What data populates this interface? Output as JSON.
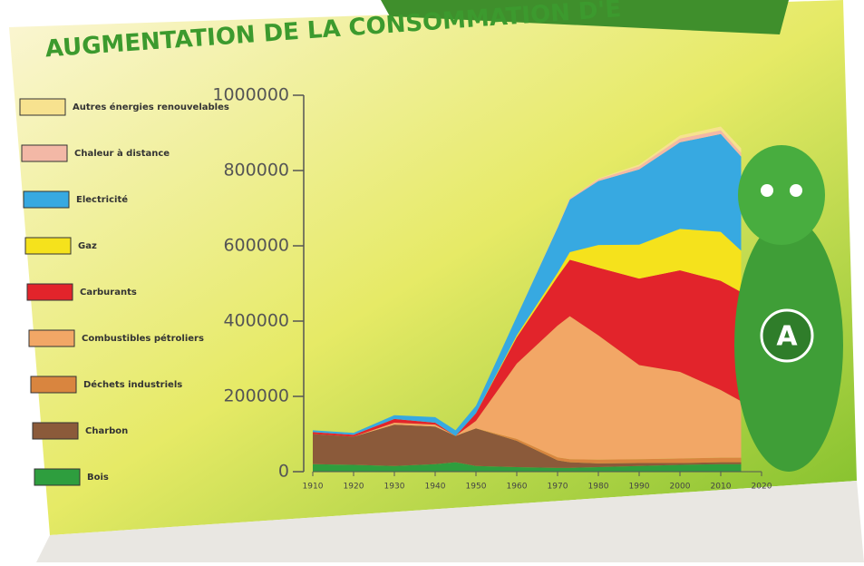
{
  "chart_data": {
    "type": "stacked-area",
    "title": "AUGMENTATION DE LA CONSOMMATION D'É",
    "x": [
      1910,
      1920,
      1930,
      1940,
      1945,
      1950,
      1960,
      1970,
      1973,
      1980,
      1990,
      2000,
      2010,
      2015
    ],
    "xlim": [
      1910,
      2020
    ],
    "xticks": [
      1910,
      1920,
      1930,
      1940,
      1950,
      1960,
      1970,
      1980,
      1990,
      2000,
      2010,
      2020
    ],
    "ylim": [
      0,
      1000000
    ],
    "yticks": [
      0,
      200000,
      400000,
      600000,
      800000,
      1000000
    ],
    "series": [
      {
        "name": "Bois",
        "color": "#2e9e3e",
        "values": [
          20000,
          18000,
          15000,
          20000,
          25000,
          15000,
          12000,
          10000,
          10000,
          12000,
          15000,
          18000,
          20000,
          20000
        ]
      },
      {
        "name": "Charbon",
        "color": "#8b5a3a",
        "values": [
          80000,
          75000,
          110000,
          100000,
          70000,
          100000,
          70000,
          20000,
          15000,
          10000,
          8000,
          5000,
          5000,
          5000
        ]
      },
      {
        "name": "Déchets industriels",
        "color": "#d9853f",
        "values": [
          0,
          0,
          0,
          0,
          0,
          0,
          5000,
          8000,
          8000,
          10000,
          10000,
          12000,
          12000,
          12000
        ]
      },
      {
        "name": "Combustibles pétroliers",
        "color": "#f2a766",
        "values": [
          0,
          0,
          5000,
          5000,
          0,
          20000,
          200000,
          350000,
          380000,
          330000,
          250000,
          230000,
          180000,
          150000
        ]
      },
      {
        "name": "Carburants",
        "color": "#e2242b",
        "values": [
          5000,
          5000,
          10000,
          5000,
          0,
          20000,
          70000,
          130000,
          150000,
          180000,
          230000,
          270000,
          290000,
          290000
        ]
      },
      {
        "name": "Gaz",
        "color": "#f5e21c",
        "values": [
          0,
          0,
          0,
          0,
          0,
          0,
          5000,
          10000,
          20000,
          60000,
          90000,
          110000,
          130000,
          110000
        ]
      },
      {
        "name": "Electricité",
        "color": "#37a9e1",
        "values": [
          5000,
          5000,
          10000,
          15000,
          15000,
          20000,
          50000,
          120000,
          140000,
          170000,
          200000,
          230000,
          260000,
          250000
        ]
      },
      {
        "name": "Chaleur à distance",
        "color": "#f3b8a6",
        "values": [
          0,
          0,
          0,
          0,
          0,
          0,
          0,
          2000,
          3000,
          5000,
          8000,
          10000,
          10000,
          10000
        ]
      },
      {
        "name": "Autres énergies renouvelables",
        "color": "#f7e28f",
        "values": [
          0,
          0,
          0,
          0,
          0,
          0,
          0,
          0,
          0,
          2000,
          5000,
          8000,
          10000,
          12000
        ]
      }
    ]
  },
  "mascot": {
    "letter": "A"
  }
}
